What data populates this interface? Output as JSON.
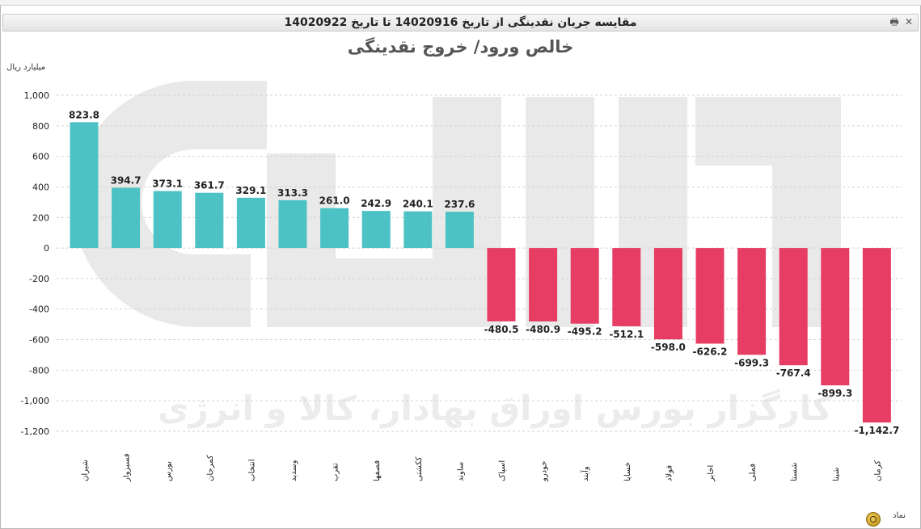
{
  "window": {
    "header_title": "مقایسه جریان نقدینگی از تاریخ 14020916 تا تاریخ 14020922",
    "tools": {
      "print_icon": "printer-icon",
      "close_icon": "close-icon",
      "minimize_icon": "minimize-icon"
    },
    "symbol_label": "نماد",
    "symbol_button_icon": "refresh-icon"
  },
  "watermark": {
    "text": "کارگزار بورس اوراق بهادار، کالا و انرژی"
  },
  "colors": {
    "positive": "#4dc2c4",
    "negative": "#e73c63",
    "grid": "#d2d2d2",
    "watermark": "#e9e9e9"
  },
  "chart_data": {
    "type": "bar",
    "title": "خالص ورود/ خروج نقدینگی",
    "ylabel": "میلیارد ریال",
    "xlabel": "نماد",
    "ylim": [
      -1200,
      1000
    ],
    "yticks": [
      1000,
      800,
      600,
      400,
      200,
      0,
      -200,
      -400,
      -600,
      -800,
      -1000,
      -1200
    ],
    "ytick_labels": [
      "1,000",
      "800",
      "600",
      "400",
      "200",
      "0",
      "-200",
      "-400",
      "-600",
      "-800",
      "-1,000",
      "-1,200"
    ],
    "grid": true,
    "categories": [
      "شیران",
      "فسبزوار",
      "بورس",
      "کمرجان",
      "انتخاب",
      "وسدید",
      "تقرب",
      "فصفها",
      "ککشتی",
      "ساوند",
      "اسپاک",
      "خودرو",
      "وآیند",
      "خساپا",
      "فولاد",
      "اخابر",
      "فملی",
      "شستا",
      "شبنا",
      "کرمان"
    ],
    "values": [
      823.8,
      394.7,
      373.1,
      361.7,
      329.1,
      313.3,
      261.0,
      242.9,
      240.1,
      237.6,
      -480.5,
      -480.9,
      -495.2,
      -512.1,
      -598.0,
      -626.2,
      -699.3,
      -767.4,
      -899.3,
      -1142.7
    ],
    "value_labels": [
      "823.8",
      "394.7",
      "373.1",
      "361.7",
      "329.1",
      "313.3",
      "261.0",
      "242.9",
      "240.1",
      "237.6",
      "-480.5",
      "-480.9",
      "-495.2",
      "-512.1",
      "-598.0",
      "-626.2",
      "-699.3",
      "-767.4",
      "-899.3",
      "-1,142.7"
    ]
  }
}
